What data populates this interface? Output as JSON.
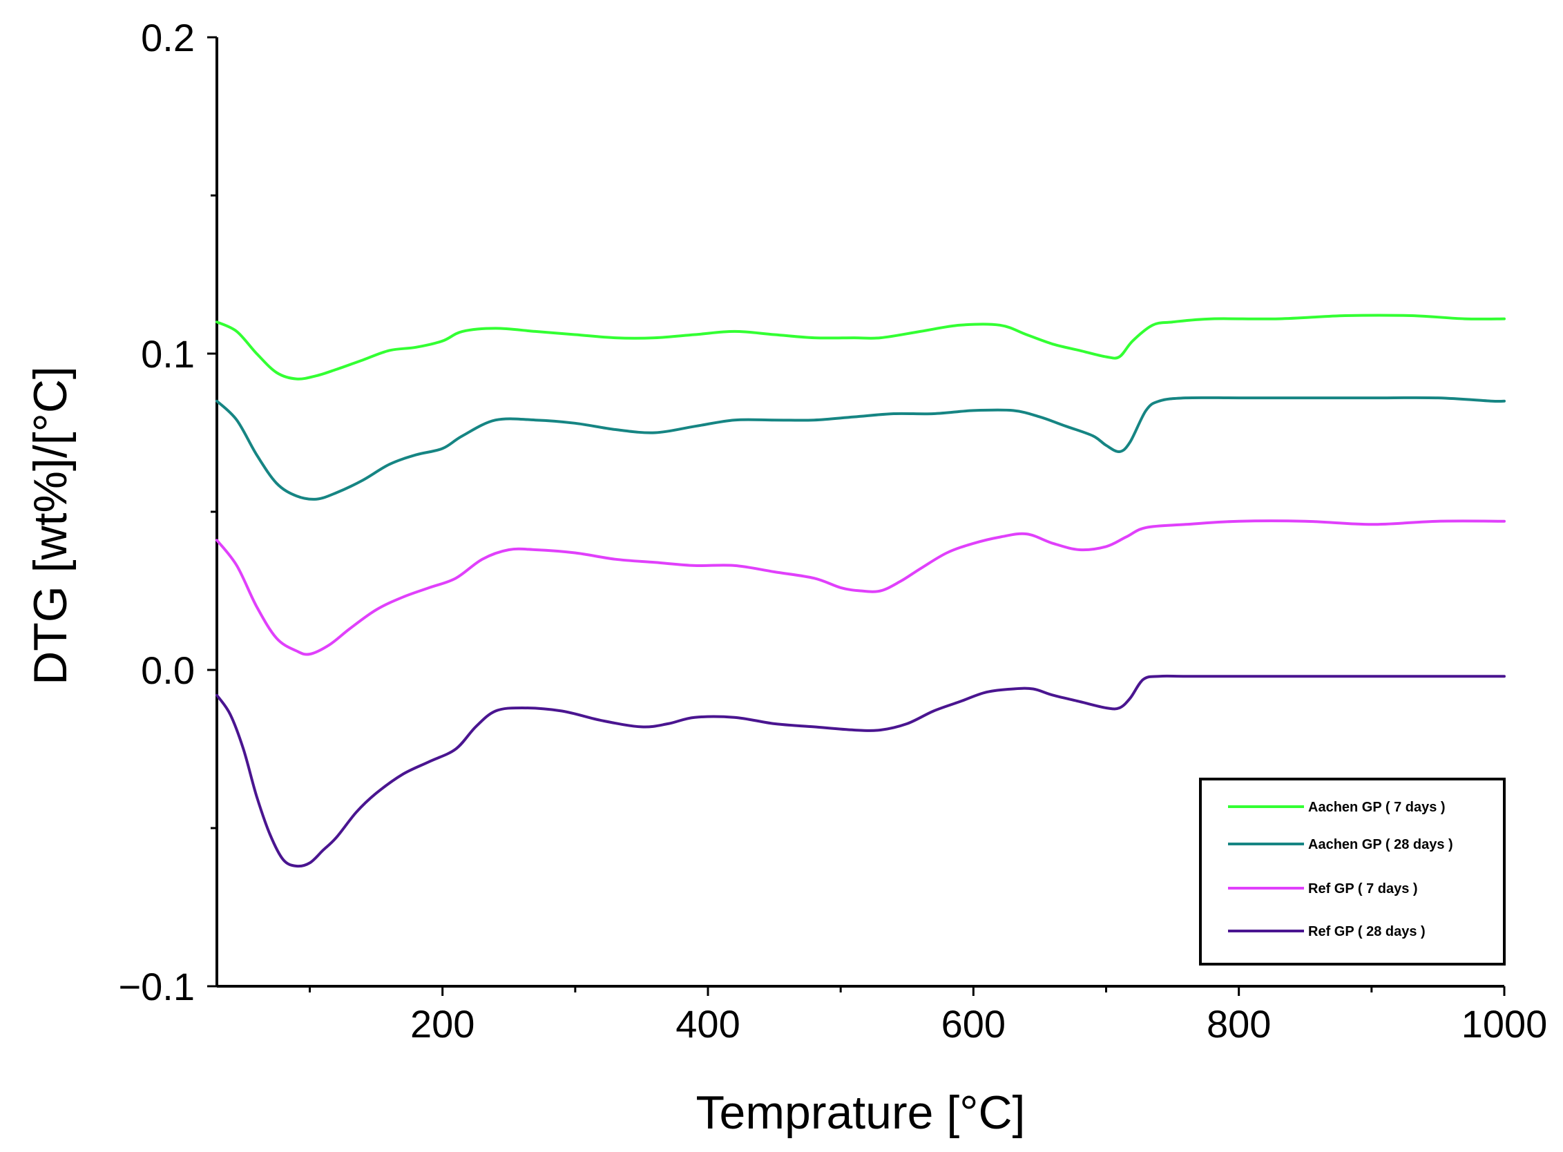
{
  "chart_data": {
    "type": "line",
    "title": "",
    "xlabel": "Temprature [°C]",
    "ylabel": "DTG  [wt%]/[°C]",
    "xlim": [
      30,
      1000
    ],
    "ylim": [
      -0.1,
      0.2
    ],
    "xticks": [
      200,
      400,
      600,
      800,
      1000
    ],
    "xtick_labels": [
      "200",
      "400",
      "600",
      "800",
      "1000"
    ],
    "xminor": [
      100,
      300,
      500,
      700,
      900
    ],
    "yticks": [
      -0.1,
      0.0,
      0.1,
      0.2
    ],
    "ytick_labels": [
      "−0.1",
      "0.0",
      "0.1",
      "0.2"
    ],
    "yminor": [
      -0.05,
      0.05,
      0.15
    ],
    "grid": false,
    "legend_position": "bottom-right",
    "series": [
      {
        "name": "Aachen GP ( 7 days )",
        "color": "#33ff33",
        "x": [
          30,
          45,
          60,
          75,
          90,
          105,
          120,
          140,
          160,
          180,
          200,
          215,
          240,
          270,
          300,
          330,
          360,
          390,
          420,
          450,
          480,
          510,
          530,
          560,
          590,
          620,
          640,
          660,
          680,
          700,
          710,
          720,
          735,
          750,
          780,
          830,
          880,
          930,
          970,
          1000
        ],
        "y": [
          0.11,
          0.107,
          0.1,
          0.094,
          0.092,
          0.093,
          0.095,
          0.098,
          0.101,
          0.102,
          0.104,
          0.107,
          0.108,
          0.107,
          0.106,
          0.105,
          0.105,
          0.106,
          0.107,
          0.106,
          0.105,
          0.105,
          0.105,
          0.107,
          0.109,
          0.109,
          0.106,
          0.103,
          0.101,
          0.099,
          0.099,
          0.104,
          0.109,
          0.11,
          0.111,
          0.111,
          0.112,
          0.112,
          0.111,
          0.111
        ]
      },
      {
        "name": "Aachen GP ( 28 days )",
        "color": "#168583",
        "x": [
          30,
          45,
          60,
          75,
          90,
          105,
          120,
          140,
          160,
          180,
          200,
          215,
          240,
          270,
          300,
          330,
          360,
          390,
          420,
          450,
          480,
          510,
          540,
          570,
          600,
          630,
          650,
          670,
          690,
          700,
          710,
          718,
          730,
          740,
          760,
          800,
          850,
          900,
          950,
          990,
          1000
        ],
        "y": [
          0.085,
          0.079,
          0.068,
          0.059,
          0.055,
          0.054,
          0.056,
          0.06,
          0.065,
          0.068,
          0.07,
          0.074,
          0.079,
          0.079,
          0.078,
          0.076,
          0.075,
          0.077,
          0.079,
          0.079,
          0.079,
          0.08,
          0.081,
          0.081,
          0.082,
          0.082,
          0.08,
          0.077,
          0.074,
          0.071,
          0.069,
          0.072,
          0.082,
          0.085,
          0.086,
          0.086,
          0.086,
          0.086,
          0.086,
          0.085,
          0.085
        ]
      },
      {
        "name": "Ref GP ( 7 days )",
        "color": "#e040fb",
        "x": [
          30,
          45,
          60,
          75,
          90,
          100,
          115,
          130,
          150,
          170,
          190,
          210,
          230,
          250,
          270,
          300,
          330,
          360,
          390,
          420,
          450,
          480,
          500,
          515,
          530,
          545,
          560,
          580,
          600,
          620,
          640,
          660,
          680,
          700,
          715,
          730,
          760,
          800,
          850,
          900,
          950,
          1000
        ],
        "y": [
          0.041,
          0.033,
          0.02,
          0.01,
          0.006,
          0.005,
          0.008,
          0.013,
          0.019,
          0.023,
          0.026,
          0.029,
          0.035,
          0.038,
          0.038,
          0.037,
          0.035,
          0.034,
          0.033,
          0.033,
          0.031,
          0.029,
          0.026,
          0.025,
          0.025,
          0.028,
          0.032,
          0.037,
          0.04,
          0.042,
          0.043,
          0.04,
          0.038,
          0.039,
          0.042,
          0.045,
          0.046,
          0.047,
          0.047,
          0.046,
          0.047,
          0.047
        ]
      },
      {
        "name": "Ref GP ( 28 days )",
        "color": "#4a1590",
        "x": [
          30,
          40,
          50,
          60,
          70,
          80,
          90,
          100,
          110,
          120,
          135,
          150,
          170,
          190,
          210,
          225,
          240,
          260,
          290,
          320,
          350,
          370,
          390,
          420,
          450,
          480,
          510,
          530,
          550,
          570,
          590,
          610,
          630,
          645,
          660,
          680,
          700,
          710,
          718,
          728,
          740,
          760,
          800,
          850,
          900,
          950,
          1000
        ],
        "y": [
          -0.008,
          -0.014,
          -0.025,
          -0.04,
          -0.052,
          -0.06,
          -0.062,
          -0.061,
          -0.057,
          -0.053,
          -0.045,
          -0.039,
          -0.033,
          -0.029,
          -0.025,
          -0.018,
          -0.013,
          -0.012,
          -0.013,
          -0.016,
          -0.018,
          -0.017,
          -0.015,
          -0.015,
          -0.017,
          -0.018,
          -0.019,
          -0.019,
          -0.017,
          -0.013,
          -0.01,
          -0.007,
          -0.006,
          -0.006,
          -0.008,
          -0.01,
          -0.012,
          -0.012,
          -0.009,
          -0.003,
          -0.002,
          -0.002,
          -0.002,
          -0.002,
          -0.002,
          -0.002,
          -0.002
        ]
      }
    ]
  }
}
